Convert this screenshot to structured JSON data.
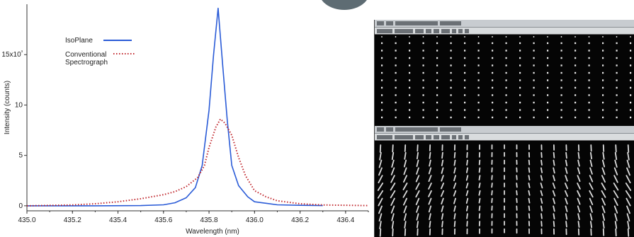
{
  "chart_data": {
    "type": "line",
    "title": "",
    "xlabel": "Wavelength (nm)",
    "ylabel": "Intensity (counts)",
    "xlim": [
      435.0,
      436.5
    ],
    "ylim": [
      -0.5,
      20
    ],
    "xticks": [
      "435.0",
      "435.2",
      "435.4",
      "435.6",
      "435.8",
      "436.0",
      "436.2",
      "436.4"
    ],
    "yticks": [
      {
        "value": 0,
        "label": "0"
      },
      {
        "value": 5,
        "label": "5"
      },
      {
        "value": 10,
        "label": "10"
      },
      {
        "value": 15,
        "label": "15x10³"
      }
    ],
    "grid": false,
    "legend_position": "top-left",
    "series": [
      {
        "name": "IsoPlane",
        "color": "#2a5bd7",
        "style": "solid",
        "x": [
          435.0,
          435.3,
          435.5,
          435.6,
          435.65,
          435.7,
          435.74,
          435.77,
          435.8,
          435.82,
          435.84,
          435.86,
          435.88,
          435.9,
          435.93,
          435.97,
          436.0,
          436.1,
          436.2,
          436.3
        ],
        "y": [
          0.0,
          0.0,
          0.02,
          0.1,
          0.3,
          0.8,
          1.8,
          4.0,
          9.5,
          15.0,
          19.6,
          14.0,
          8.5,
          4.0,
          2.0,
          0.9,
          0.4,
          0.1,
          0.05,
          0.02
        ]
      },
      {
        "name": "Conventional Spectrograph",
        "color": "#c0272d",
        "style": "dotted",
        "x": [
          435.0,
          435.2,
          435.3,
          435.4,
          435.5,
          435.6,
          435.65,
          435.7,
          435.75,
          435.78,
          435.8,
          435.83,
          435.85,
          435.87,
          435.9,
          435.93,
          435.96,
          436.0,
          436.05,
          436.1,
          436.2,
          436.3,
          436.5
        ],
        "y": [
          0.0,
          0.08,
          0.2,
          0.4,
          0.7,
          1.1,
          1.4,
          1.9,
          2.8,
          4.0,
          5.8,
          7.8,
          8.6,
          8.2,
          7.0,
          4.8,
          3.0,
          1.5,
          0.9,
          0.5,
          0.2,
          0.08,
          0.02
        ]
      }
    ]
  },
  "legend": {
    "isoplane": "IsoPlane",
    "conventional_line1": "Conventional",
    "conventional_line2": "Spectrograph"
  },
  "images": {
    "top_panel": "camera-image-spots",
    "bottom_panel": "camera-image-streaks"
  }
}
